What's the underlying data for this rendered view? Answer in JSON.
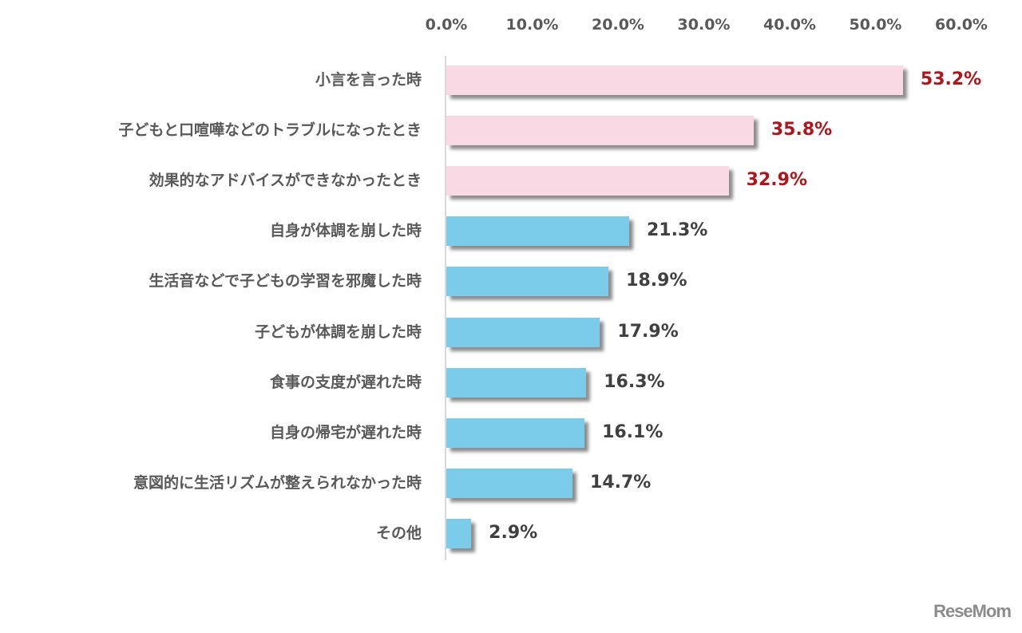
{
  "chart_data": {
    "type": "bar",
    "orientation": "horizontal",
    "title": "",
    "xlabel": "",
    "ylabel": "",
    "xlim": [
      0,
      60
    ],
    "x_ticks": [
      "0.0%",
      "10.0%",
      "20.0%",
      "30.0%",
      "40.0%",
      "50.0%",
      "60.0%"
    ],
    "grid": false,
    "legend": null,
    "categories": [
      "小言を言った時",
      "子どもと口喧嘩などのトラブルになったとき",
      "効果的なアドバイスができなかったとき",
      "自身が体調を崩した時",
      "生活音などで子どもの学習を邪魔した時",
      "子どもが体調を崩した時",
      "食事の支度が遅れた時",
      "自身の帰宅が遅れた時",
      "意図的に生活リズムが整えられなかった時",
      "その他"
    ],
    "values": [
      53.2,
      35.8,
      32.9,
      21.3,
      18.9,
      17.9,
      16.3,
      16.1,
      14.7,
      2.9
    ],
    "value_labels": [
      "53.2%",
      "35.8%",
      "32.9%",
      "21.3%",
      "18.9%",
      "17.9%",
      "16.3%",
      "16.1%",
      "14.7%",
      "2.9%"
    ],
    "highlighted_top": 3,
    "colors": {
      "highlight_bar": "#f9d9e3",
      "normal_bar": "#7accea",
      "highlight_label": "#b3131b",
      "normal_label": "#404040",
      "category_text": "#595959",
      "axis": "#d9d9d9"
    }
  },
  "watermark": "ReseMom"
}
